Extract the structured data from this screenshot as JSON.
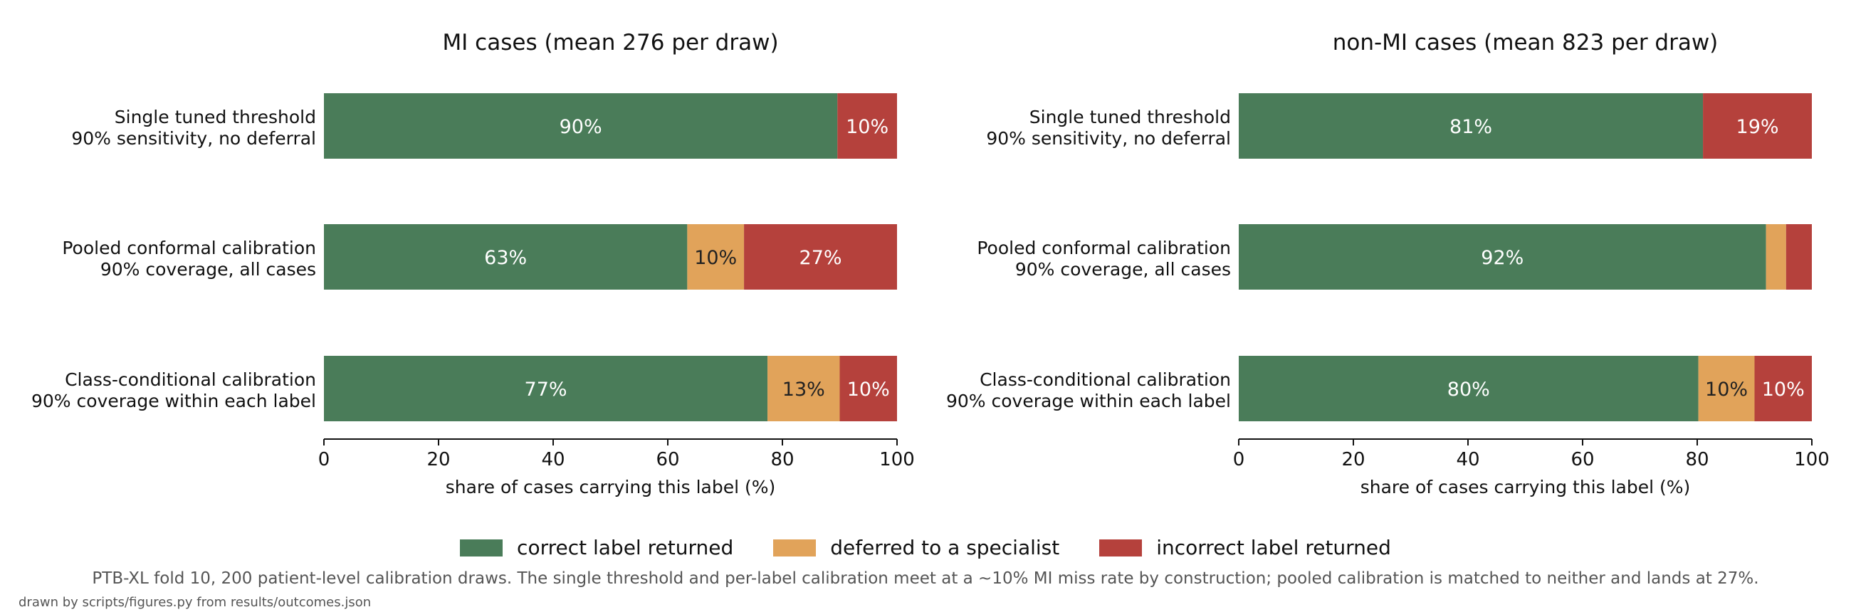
{
  "colors": {
    "correct": "#4a7c59",
    "deferred": "#e1a35a",
    "incorrect": "#b5413c"
  },
  "legend": {
    "correct": "correct label returned",
    "deferred": "deferred to a specialist",
    "incorrect": "incorrect label returned"
  },
  "caption": "PTB-XL fold 10, 200 patient-level calibration draws. The single threshold and per-label calibration meet at a ~10% MI miss rate by construction; pooled calibration is matched to neither and lands at 27%.",
  "footnote": "drawn by scripts/figures.py from results/outcomes.json",
  "chart_data": [
    {
      "type": "bar",
      "orientation": "horizontal",
      "stacked": true,
      "title": "MI cases (mean 276 per draw)",
      "xlabel": "share of cases carrying this label (%)",
      "xlim": [
        0,
        100
      ],
      "xticks": [
        0,
        20,
        40,
        60,
        80,
        100
      ],
      "categories": [
        [
          "Single tuned threshold",
          "90% sensitivity, no deferral"
        ],
        [
          "Pooled conformal calibration",
          "90% coverage, all cases"
        ],
        [
          "Class-conditional calibration",
          "90% coverage within each label"
        ]
      ],
      "series": [
        {
          "name": "correct label returned",
          "key": "correct",
          "values": [
            89.6,
            63.4,
            77.4
          ],
          "labels": [
            "90%",
            "63%",
            "77%"
          ]
        },
        {
          "name": "deferred to a specialist",
          "key": "deferred",
          "values": [
            0,
            9.9,
            12.6
          ],
          "labels": [
            "",
            "10%",
            "13%"
          ]
        },
        {
          "name": "incorrect label returned",
          "key": "incorrect",
          "values": [
            10.4,
            26.7,
            10.0
          ],
          "labels": [
            "10%",
            "",
            "10%"
          ]
        }
      ],
      "extra_labels": [
        {
          "bar": 1,
          "series": 2,
          "label": "27%"
        }
      ]
    },
    {
      "type": "bar",
      "orientation": "horizontal",
      "stacked": true,
      "title": "non-MI cases (mean 823 per draw)",
      "xlabel": "share of cases carrying this label (%)",
      "xlim": [
        0,
        100
      ],
      "xticks": [
        0,
        20,
        40,
        60,
        80,
        100
      ],
      "categories": [
        [
          "Single tuned threshold",
          "90% sensitivity, no deferral"
        ],
        [
          "Pooled conformal calibration",
          "90% coverage, all cases"
        ],
        [
          "Class-conditional calibration",
          "90% coverage within each label"
        ]
      ],
      "series": [
        {
          "name": "correct label returned",
          "key": "correct",
          "values": [
            81.0,
            92.0,
            80.2
          ],
          "labels": [
            "81%",
            "92%",
            "80%"
          ]
        },
        {
          "name": "deferred to a specialist",
          "key": "deferred",
          "values": [
            0,
            3.5,
            9.8
          ],
          "labels": [
            "",
            "",
            "10%"
          ]
        },
        {
          "name": "incorrect label returned",
          "key": "incorrect",
          "values": [
            19.0,
            4.5,
            10.0
          ],
          "labels": [
            "19%",
            "",
            "10%"
          ]
        }
      ]
    }
  ]
}
